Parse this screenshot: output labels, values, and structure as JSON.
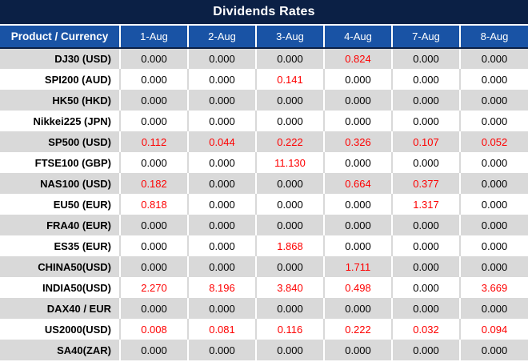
{
  "title": "Dividends Rates",
  "table": {
    "product_header": "Product / Currency",
    "date_headers": [
      "1-Aug",
      "2-Aug",
      "3-Aug",
      "4-Aug",
      "7-Aug",
      "8-Aug"
    ],
    "rows": [
      {
        "product": "DJ30 (USD)",
        "values": [
          "0.000",
          "0.000",
          "0.000",
          "0.824",
          "0.000",
          "0.000"
        ],
        "red_columns": [
          3
        ]
      },
      {
        "product": "SPI200 (AUD)",
        "values": [
          "0.000",
          "0.000",
          "0.141",
          "0.000",
          "0.000",
          "0.000"
        ],
        "red_columns": [
          2
        ]
      },
      {
        "product": "HK50 (HKD)",
        "values": [
          "0.000",
          "0.000",
          "0.000",
          "0.000",
          "0.000",
          "0.000"
        ],
        "red_columns": []
      },
      {
        "product": "Nikkei225 (JPN)",
        "values": [
          "0.000",
          "0.000",
          "0.000",
          "0.000",
          "0.000",
          "0.000"
        ],
        "red_columns": []
      },
      {
        "product": "SP500 (USD)",
        "values": [
          "0.112",
          "0.044",
          "0.222",
          "0.326",
          "0.107",
          "0.052"
        ],
        "red_columns": [
          0,
          1,
          2,
          3,
          4,
          5
        ]
      },
      {
        "product": "FTSE100 (GBP)",
        "values": [
          "0.000",
          "0.000",
          "11.130",
          "0.000",
          "0.000",
          "0.000"
        ],
        "red_columns": [
          2
        ]
      },
      {
        "product": "NAS100 (USD)",
        "values": [
          "0.182",
          "0.000",
          "0.000",
          "0.664",
          "0.377",
          "0.000"
        ],
        "red_columns": [
          0,
          3,
          4
        ]
      },
      {
        "product": "EU50 (EUR)",
        "values": [
          "0.818",
          "0.000",
          "0.000",
          "0.000",
          "1.317",
          "0.000"
        ],
        "red_columns": [
          0,
          4
        ]
      },
      {
        "product": "FRA40 (EUR)",
        "values": [
          "0.000",
          "0.000",
          "0.000",
          "0.000",
          "0.000",
          "0.000"
        ],
        "red_columns": []
      },
      {
        "product": "ES35 (EUR)",
        "values": [
          "0.000",
          "0.000",
          "1.868",
          "0.000",
          "0.000",
          "0.000"
        ],
        "red_columns": [
          2
        ]
      },
      {
        "product": "CHINA50(USD)",
        "values": [
          "0.000",
          "0.000",
          "0.000",
          "1.711",
          "0.000",
          "0.000"
        ],
        "red_columns": [
          3
        ]
      },
      {
        "product": "INDIA50(USD)",
        "values": [
          "2.270",
          "8.196",
          "3.840",
          "0.498",
          "0.000",
          "3.669"
        ],
        "red_columns": [
          0,
          1,
          2,
          3,
          5
        ]
      },
      {
        "product": "DAX40 / EUR",
        "values": [
          "0.000",
          "0.000",
          "0.000",
          "0.000",
          "0.000",
          "0.000"
        ],
        "red_columns": []
      },
      {
        "product": "US2000(USD)",
        "values": [
          "0.008",
          "0.081",
          "0.116",
          "0.222",
          "0.032",
          "0.094"
        ],
        "red_columns": [
          0,
          1,
          2,
          3,
          4,
          5
        ]
      },
      {
        "product": "SA40(ZAR)",
        "values": [
          "0.000",
          "0.000",
          "0.000",
          "0.000",
          "0.000",
          "0.000"
        ],
        "red_columns": []
      }
    ]
  },
  "colors": {
    "title_bar_bg": "#0b2045",
    "header_bg": "#1953a5",
    "header_text": "#ffffff",
    "row_alt_bg": "#d9d9d9",
    "row_bg": "#ffffff",
    "value_text": "#000000",
    "highlight_red": "#fe0000"
  }
}
